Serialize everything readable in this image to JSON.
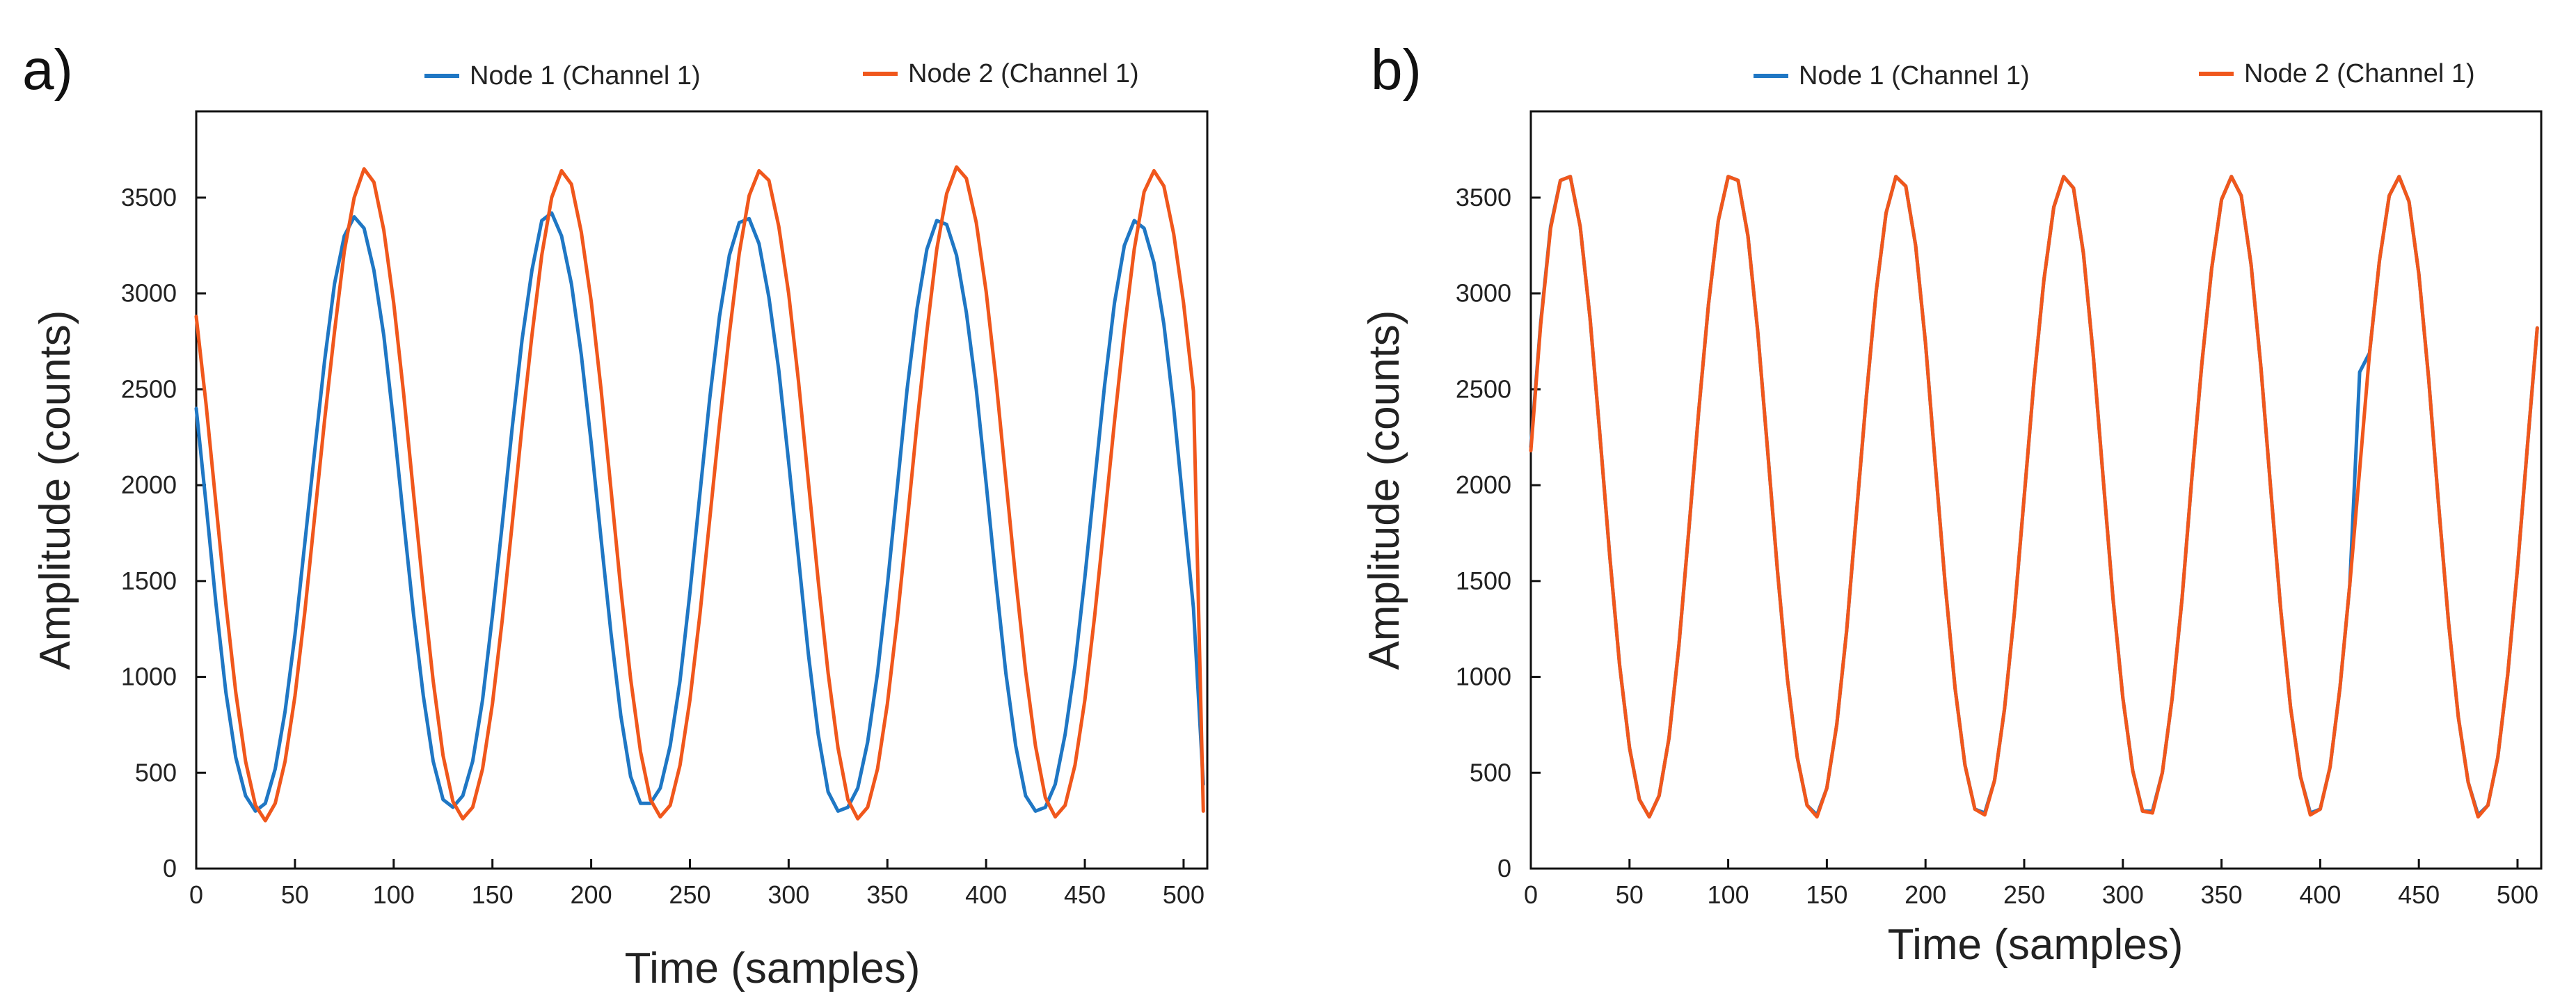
{
  "chart_data": [
    {
      "type": "line",
      "panel": "a)",
      "title": "",
      "xlabel": "Time (samples)",
      "ylabel": "Amplitude (counts)",
      "xlim": [
        0,
        512
      ],
      "ylim": [
        0,
        3950
      ],
      "xticks": [
        0,
        50,
        100,
        150,
        200,
        250,
        300,
        350,
        400,
        450,
        500
      ],
      "yticks": [
        0,
        500,
        1000,
        1500,
        2000,
        2500,
        3000,
        3500
      ],
      "legend": "top",
      "series": [
        {
          "name": "Node 1 (Channel 1)",
          "color": "#1f77c4",
          "x": [
            0,
            5,
            10,
            15,
            20,
            25,
            30,
            35,
            40,
            45,
            50,
            55,
            60,
            65,
            70,
            75,
            80,
            85,
            90,
            95,
            100,
            105,
            110,
            115,
            120,
            125,
            130,
            135,
            140,
            145,
            150,
            155,
            160,
            165,
            170,
            175,
            180,
            185,
            190,
            195,
            200,
            205,
            210,
            215,
            220,
            225,
            230,
            235,
            240,
            245,
            250,
            255,
            260,
            265,
            270,
            275,
            280,
            285,
            290,
            295,
            300,
            305,
            310,
            315,
            320,
            325,
            330,
            335,
            340,
            345,
            350,
            355,
            360,
            365,
            370,
            375,
            380,
            385,
            390,
            395,
            400,
            405,
            410,
            415,
            420,
            425,
            430,
            435,
            440,
            445,
            450,
            455,
            460,
            465,
            470,
            475,
            480,
            485,
            490,
            495,
            500,
            505,
            510
          ],
          "y": [
            2400,
            1900,
            1380,
            920,
            580,
            380,
            300,
            340,
            520,
            820,
            1220,
            1700,
            2180,
            2650,
            3050,
            3300,
            3400,
            3340,
            3120,
            2780,
            2320,
            1820,
            1330,
            900,
            560,
            360,
            320,
            380,
            560,
            880,
            1320,
            1800,
            2300,
            2760,
            3120,
            3380,
            3420,
            3300,
            3050,
            2680,
            2220,
            1720,
            1230,
            800,
            480,
            340,
            340,
            420,
            640,
            980,
            1440,
            1950,
            2450,
            2880,
            3200,
            3370,
            3390,
            3260,
            2980,
            2600,
            2120,
            1620,
            1120,
            700,
            400,
            300,
            320,
            420,
            660,
            1020,
            1480,
            1990,
            2500,
            2920,
            3230,
            3380,
            3360,
            3200,
            2900,
            2500,
            2010,
            1500,
            1020,
            640,
            380,
            300,
            320,
            440,
            700,
            1060,
            1520,
            2020,
            2520,
            2950,
            3250,
            3380,
            3340,
            3160,
            2840,
            2400,
            1880,
            1360,
            440
          ]
        },
        {
          "name": "Node 2 (Channel 1)",
          "color": "#f0571c",
          "x": [
            0,
            5,
            10,
            15,
            20,
            25,
            30,
            35,
            40,
            45,
            50,
            55,
            60,
            65,
            70,
            75,
            80,
            85,
            90,
            95,
            100,
            105,
            110,
            115,
            120,
            125,
            130,
            135,
            140,
            145,
            150,
            155,
            160,
            165,
            170,
            175,
            180,
            185,
            190,
            195,
            200,
            205,
            210,
            215,
            220,
            225,
            230,
            235,
            240,
            245,
            250,
            255,
            260,
            265,
            270,
            275,
            280,
            285,
            290,
            295,
            300,
            305,
            310,
            315,
            320,
            325,
            330,
            335,
            340,
            345,
            350,
            355,
            360,
            365,
            370,
            375,
            380,
            385,
            390,
            395,
            400,
            405,
            410,
            415,
            420,
            425,
            430,
            435,
            440,
            445,
            450,
            455,
            460,
            465,
            470,
            475,
            480,
            485,
            490,
            495,
            500,
            505,
            510
          ],
          "y": [
            2880,
            2420,
            1900,
            1380,
            920,
            560,
            330,
            250,
            340,
            560,
            900,
            1340,
            1840,
            2340,
            2800,
            3220,
            3500,
            3650,
            3580,
            3330,
            2950,
            2480,
            1960,
            1450,
            980,
            590,
            350,
            260,
            320,
            520,
            860,
            1300,
            1800,
            2310,
            2780,
            3200,
            3500,
            3640,
            3570,
            3320,
            2960,
            2500,
            1980,
            1460,
            990,
            610,
            360,
            270,
            330,
            540,
            880,
            1320,
            1820,
            2320,
            2790,
            3210,
            3510,
            3640,
            3590,
            3350,
            3000,
            2540,
            2020,
            1500,
            1020,
            630,
            360,
            260,
            320,
            520,
            860,
            1300,
            1800,
            2320,
            2800,
            3230,
            3520,
            3660,
            3600,
            3370,
            3010,
            2550,
            2030,
            1510,
            1030,
            640,
            370,
            270,
            330,
            540,
            880,
            1320,
            1820,
            2330,
            2810,
            3230,
            3530,
            3640,
            3560,
            3310,
            2950,
            2490,
            300
          ]
        }
      ]
    },
    {
      "type": "line",
      "panel": "b)",
      "title": "",
      "xlabel": "Time (samples)",
      "ylabel": "Amplitude (counts)",
      "xlim": [
        0,
        512
      ],
      "ylim": [
        0,
        3950
      ],
      "xticks": [
        0,
        50,
        100,
        150,
        200,
        250,
        300,
        350,
        400,
        450,
        500
      ],
      "yticks": [
        0,
        500,
        1000,
        1500,
        2000,
        2500,
        3000,
        3500
      ],
      "legend": "top",
      "series": [
        {
          "name": "Node 1 (Channel 1)",
          "color": "#1f77c4",
          "x": [
            0,
            5,
            10,
            15,
            20,
            25,
            30,
            35,
            40,
            45,
            50,
            55,
            60,
            65,
            70,
            75,
            80,
            85,
            90,
            95,
            100,
            105,
            110,
            115,
            120,
            125,
            130,
            135,
            140,
            145,
            150,
            155,
            160,
            165,
            170,
            175,
            180,
            185,
            190,
            195,
            200,
            205,
            210,
            215,
            220,
            225,
            230,
            235,
            240,
            245,
            250,
            255,
            260,
            265,
            270,
            275,
            280,
            285,
            290,
            295,
            300,
            305,
            310,
            315,
            320,
            325,
            330,
            335,
            340,
            345,
            350,
            355,
            360,
            365,
            370,
            375,
            380,
            385,
            390,
            395,
            400,
            405,
            410,
            415,
            420,
            425,
            430,
            435,
            440,
            445,
            450,
            455,
            460,
            465,
            470,
            475,
            480,
            485,
            490,
            495,
            500,
            505,
            510
          ],
          "y": [
            2200,
            2850,
            3350,
            3590,
            3610,
            3350,
            2870,
            2260,
            1630,
            1060,
            630,
            360,
            270,
            380,
            680,
            1160,
            1760,
            2380,
            2940,
            3380,
            3610,
            3590,
            3300,
            2800,
            2180,
            1550,
            990,
            580,
            330,
            280,
            420,
            750,
            1240,
            1850,
            2460,
            3010,
            3420,
            3610,
            3560,
            3250,
            2740,
            2100,
            1480,
            940,
            540,
            310,
            290,
            460,
            830,
            1330,
            1940,
            2550,
            3070,
            3450,
            3610,
            3550,
            3210,
            2680,
            2040,
            1410,
            890,
            510,
            300,
            300,
            500,
            890,
            1410,
            2040,
            2630,
            3130,
            3490,
            3610,
            3510,
            3150,
            2610,
            1970,
            1350,
            840,
            480,
            290,
            310,
            530,
            940,
            1480,
            2590,
            2690,
            3170,
            3510,
            3610,
            3480,
            3100,
            2550,
            1900,
            1290,
            790,
            450,
            280,
            330,
            580,
            1010,
            1570,
            2200,
            2820
          ]
        },
        {
          "name": "Node 2 (Channel 1)",
          "color": "#f0571c",
          "x": [
            0,
            5,
            10,
            15,
            20,
            25,
            30,
            35,
            40,
            45,
            50,
            55,
            60,
            65,
            70,
            75,
            80,
            85,
            90,
            95,
            100,
            105,
            110,
            115,
            120,
            125,
            130,
            135,
            140,
            145,
            150,
            155,
            160,
            165,
            170,
            175,
            180,
            185,
            190,
            195,
            200,
            205,
            210,
            215,
            220,
            225,
            230,
            235,
            240,
            245,
            250,
            255,
            260,
            265,
            270,
            275,
            280,
            285,
            290,
            295,
            300,
            305,
            310,
            315,
            320,
            325,
            330,
            335,
            340,
            345,
            350,
            355,
            360,
            365,
            370,
            375,
            380,
            385,
            390,
            395,
            400,
            405,
            410,
            415,
            420,
            425,
            430,
            435,
            440,
            445,
            450,
            455,
            460,
            465,
            470,
            475,
            480,
            485,
            490,
            495,
            500,
            505,
            510
          ],
          "y": [
            2180,
            2840,
            3340,
            3590,
            3610,
            3350,
            2870,
            2260,
            1630,
            1060,
            630,
            360,
            270,
            380,
            680,
            1160,
            1760,
            2380,
            2940,
            3380,
            3610,
            3590,
            3300,
            2800,
            2180,
            1550,
            990,
            580,
            330,
            270,
            420,
            750,
            1240,
            1850,
            2460,
            3010,
            3420,
            3610,
            3560,
            3250,
            2740,
            2100,
            1480,
            940,
            540,
            310,
            280,
            460,
            830,
            1330,
            1940,
            2550,
            3070,
            3450,
            3610,
            3550,
            3210,
            2680,
            2040,
            1410,
            890,
            510,
            300,
            290,
            500,
            890,
            1410,
            2040,
            2630,
            3130,
            3490,
            3610,
            3510,
            3150,
            2610,
            1970,
            1350,
            840,
            480,
            280,
            310,
            530,
            940,
            1480,
            2080,
            2690,
            3170,
            3510,
            3610,
            3480,
            3100,
            2550,
            1900,
            1290,
            790,
            450,
            270,
            330,
            580,
            1010,
            1570,
            2200,
            2820
          ]
        }
      ]
    }
  ]
}
